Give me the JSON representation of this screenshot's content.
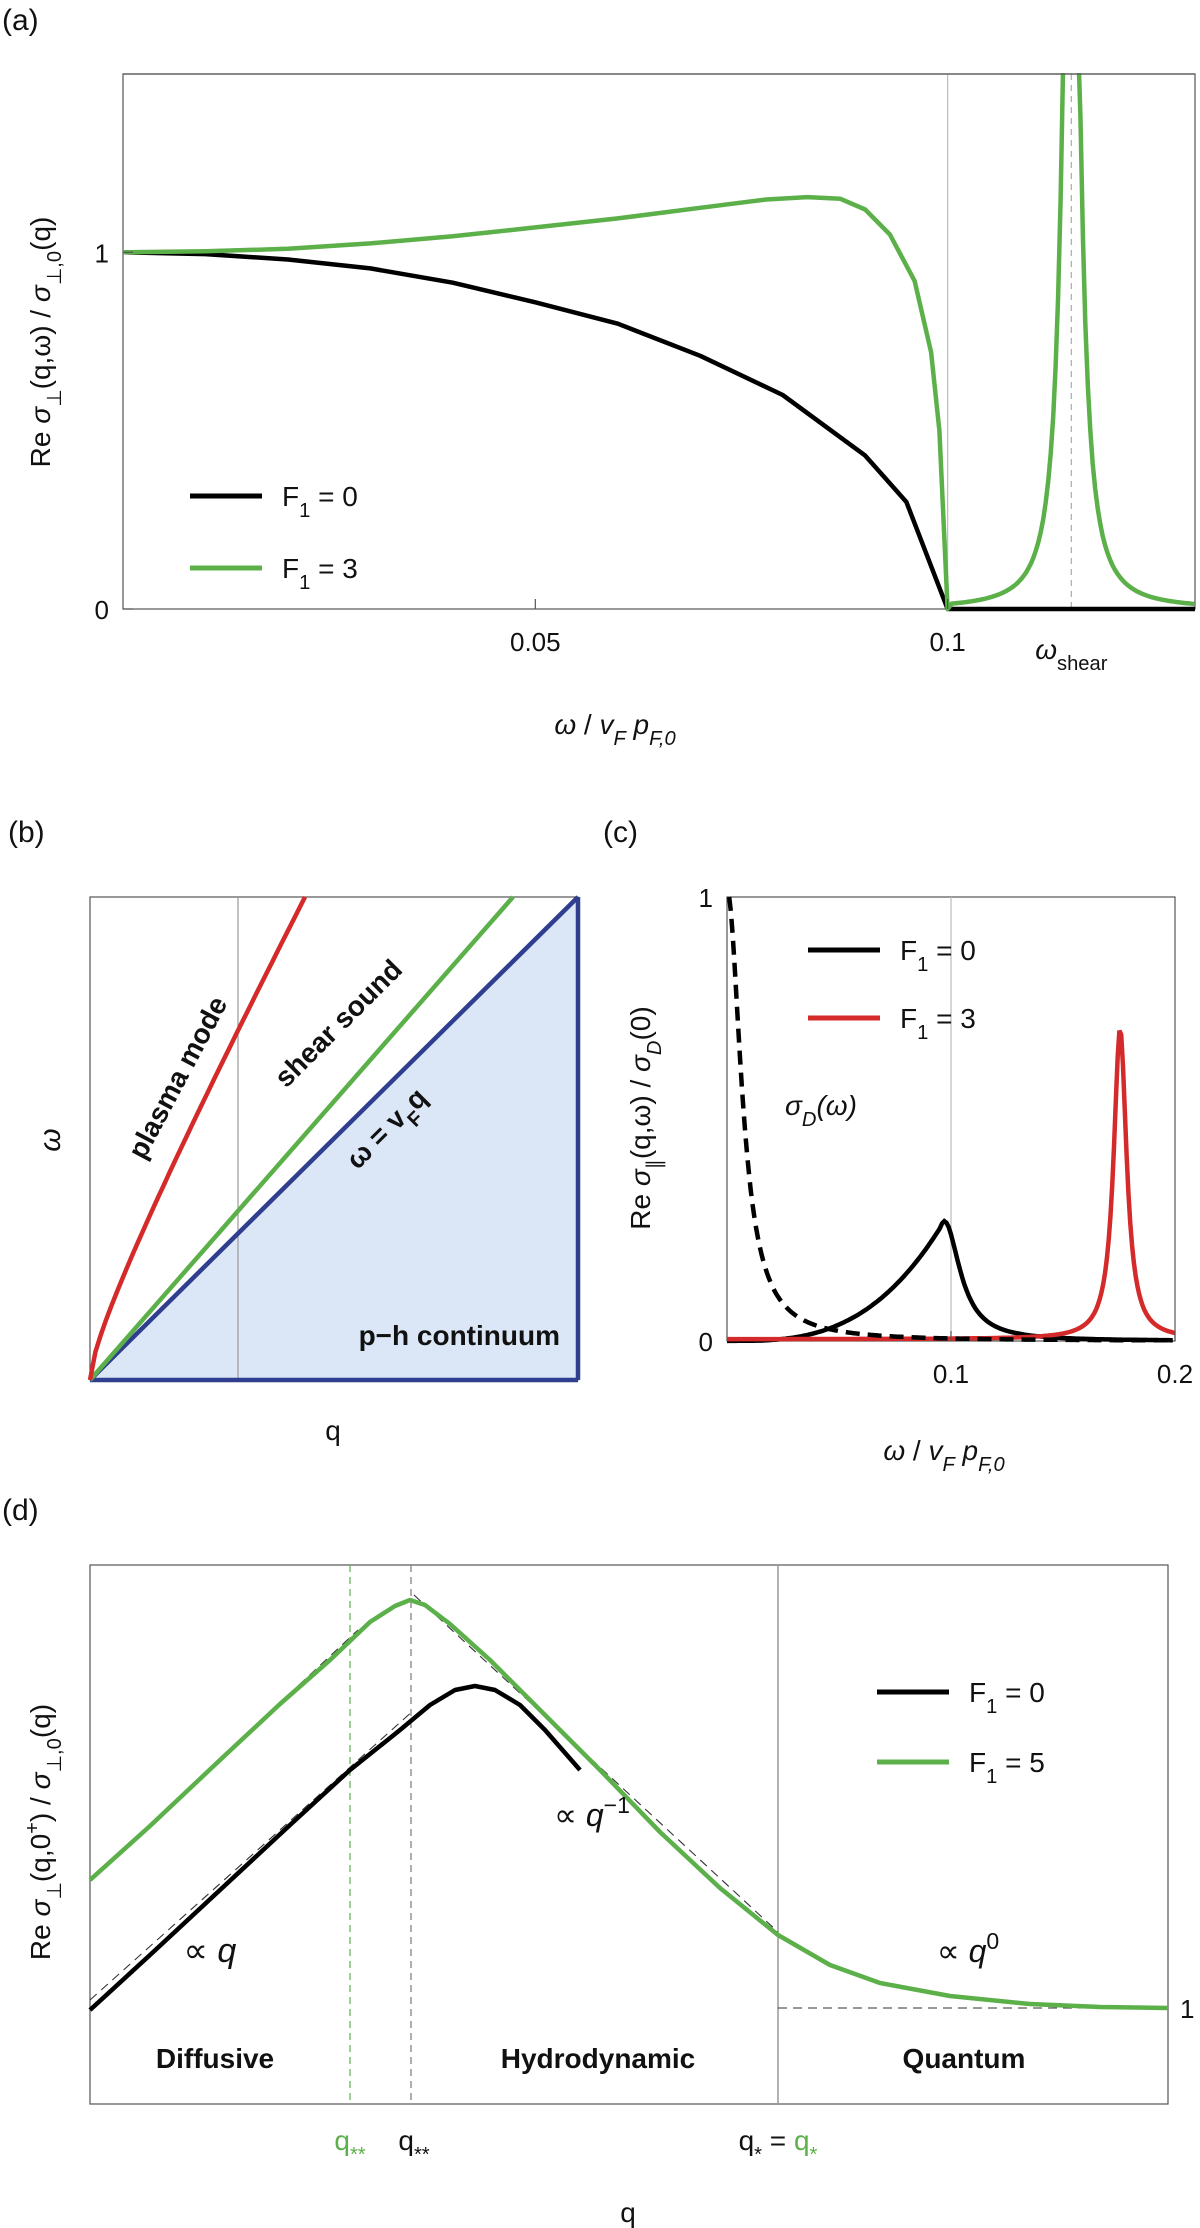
{
  "colors": {
    "black": "#000000",
    "green": "#5cb04a",
    "red": "#d42a2a",
    "blue": "#2f3e8f",
    "fill": "#dbe7f7"
  },
  "panel_a": {
    "label": "(a)",
    "ylabel": "Re σ⊥(q,ω) / σ⊥,0(q)",
    "xlabel": "ω / vF pF,0",
    "yticks": [
      {
        "v": 0,
        "label": "0"
      },
      {
        "v": 1,
        "label": "1"
      }
    ],
    "xticks": [
      {
        "v": 0.05,
        "label": "0.05"
      },
      {
        "v": 0.1,
        "label": "0.1"
      }
    ],
    "omega_shear_label": "ωshear",
    "legend": [
      {
        "label": "F1 = 0",
        "color": "#000000"
      },
      {
        "label": "F1 = 3",
        "color": "#5cb04a"
      }
    ]
  },
  "panel_b": {
    "label": "(b)",
    "xlabel": "q",
    "ylabel": "ω",
    "curves": {
      "plasma": "plasma mode",
      "shear": "shear sound",
      "vf": "ω = vFq",
      "continuum": "p−h continuum"
    }
  },
  "panel_c": {
    "label": "(c)",
    "ylabel": "Re σ∥(q,ω) / σD(0)",
    "xlabel": "ω / vF pF,0",
    "yticks": [
      {
        "v": 0,
        "label": "0"
      },
      {
        "v": 1,
        "label": "1"
      }
    ],
    "xticks": [
      {
        "v": 0.1,
        "label": "0.1"
      },
      {
        "v": 0.2,
        "label": "0.2"
      }
    ],
    "drude_label": "σD(ω)",
    "legend": [
      {
        "label": "F1 = 0",
        "color": "#000000"
      },
      {
        "label": "F1 = 3",
        "color": "#d42a2a"
      }
    ]
  },
  "panel_d": {
    "label": "(d)",
    "ylabel": "Re σ⊥(q,0+) / σ⊥,0(q)",
    "xlabel": "q",
    "right_tick": "1",
    "regions": [
      "Diffusive",
      "Hydrodynamic",
      "Quantum"
    ],
    "scalings": [
      "∝ q",
      "∝ q−1",
      "∝ q0"
    ],
    "xticks": [
      "q**",
      "q**",
      "q* = q*"
    ],
    "legend": [
      {
        "label": "F1 = 0",
        "color": "#000000"
      },
      {
        "label": "F1 = 5",
        "color": "#5cb04a"
      }
    ]
  },
  "chart_data": [
    {
      "type": "line",
      "panel": "a",
      "xlabel": "ω / vF pF,0",
      "ylabel": "Re σ⊥(q,ω) / σ⊥,0(q)",
      "xlim": [
        0,
        0.13
      ],
      "ylim": [
        0,
        1.5
      ],
      "series": [
        {
          "name": "F1 = 0",
          "color": "#000000",
          "x": [
            0,
            0.01,
            0.02,
            0.03,
            0.04,
            0.05,
            0.06,
            0.07,
            0.08,
            0.09,
            0.095,
            0.1,
            0.13
          ],
          "y": [
            1,
            0.995,
            0.98,
            0.955,
            0.915,
            0.86,
            0.8,
            0.71,
            0.6,
            0.43,
            0.3,
            0,
            0
          ]
        },
        {
          "name": "F1 = 3",
          "color": "#5cb04a",
          "x": [
            0,
            0.01,
            0.02,
            0.03,
            0.04,
            0.05,
            0.06,
            0.07,
            0.08,
            0.085,
            0.09,
            0.095,
            0.1,
            0.105,
            0.11,
            0.113,
            0.115,
            0.117,
            0.12,
            0.125,
            0.13
          ],
          "y": [
            1,
            1.003,
            1.01,
            1.025,
            1.045,
            1.07,
            1.095,
            1.125,
            1.155,
            1.155,
            1.1,
            0.9,
            0,
            0.03,
            0.1,
            0.3,
            1.5,
            0.3,
            0.08,
            0.02,
            0.01
          ]
        }
      ]
    },
    {
      "type": "line",
      "panel": "c",
      "xlabel": "ω / vF pF,0",
      "ylabel": "Re σ∥(q,ω) / σD(0)",
      "xlim": [
        0,
        0.2
      ],
      "ylim": [
        0,
        1
      ],
      "series": [
        {
          "name": "F1 = 0",
          "color": "#000000",
          "x": [
            0,
            0.02,
            0.04,
            0.06,
            0.08,
            0.09,
            0.098,
            0.105,
            0.115,
            0.13,
            0.2
          ],
          "y": [
            0,
            0.002,
            0.008,
            0.03,
            0.09,
            0.16,
            0.27,
            0.1,
            0.03,
            0.01,
            0.002
          ]
        },
        {
          "name": "F1 = 3",
          "color": "#d42a2a",
          "x": [
            0,
            0.1,
            0.15,
            0.165,
            0.172,
            0.176,
            0.18,
            0.19,
            0.2
          ],
          "y": [
            0,
            0.005,
            0.02,
            0.12,
            0.45,
            0.7,
            0.3,
            0.04,
            0.01
          ]
        },
        {
          "name": "σD(ω)",
          "color": "#000000",
          "dashed": true,
          "x": [
            0,
            0.005,
            0.01,
            0.015,
            0.02,
            0.025,
            0.03,
            0.04,
            0.05,
            0.08,
            0.12,
            0.2
          ],
          "y": [
            1,
            0.82,
            0.55,
            0.38,
            0.25,
            0.16,
            0.1,
            0.04,
            0.02,
            0.006,
            0.002,
            0.001
          ]
        }
      ]
    }
  ]
}
